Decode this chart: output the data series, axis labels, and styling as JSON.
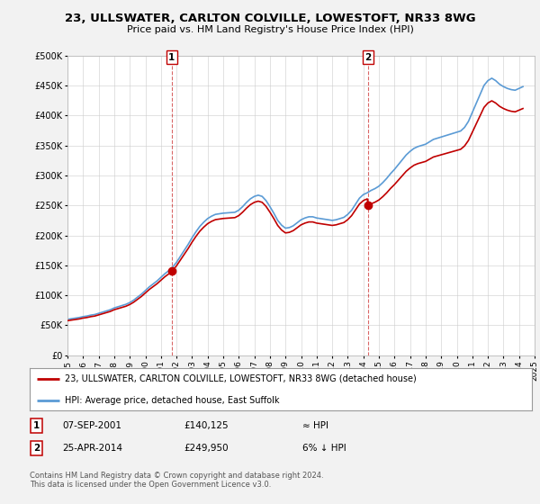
{
  "title": "23, ULLSWATER, CARLTON COLVILLE, LOWESTOFT, NR33 8WG",
  "subtitle": "Price paid vs. HM Land Registry's House Price Index (HPI)",
  "legend_line1": "23, ULLSWATER, CARLTON COLVILLE, LOWESTOFT, NR33 8WG (detached house)",
  "legend_line2": "HPI: Average price, detached house, East Suffolk",
  "annotation1_label": "1",
  "annotation1_date": "07-SEP-2001",
  "annotation1_price": "£140,125",
  "annotation1_hpi": "≈ HPI",
  "annotation2_label": "2",
  "annotation2_date": "25-APR-2014",
  "annotation2_price": "£249,950",
  "annotation2_hpi": "6% ↓ HPI",
  "footer": "Contains HM Land Registry data © Crown copyright and database right 2024.\nThis data is licensed under the Open Government Licence v3.0.",
  "sale1_year": 2001.69,
  "sale1_price": 140125,
  "sale2_year": 2014.32,
  "sale2_price": 249950,
  "hpi_color": "#5b9bd5",
  "price_paid_color": "#c00000",
  "background_color": "#f2f2f2",
  "plot_bg_color": "#ffffff",
  "ylim": [
    0,
    500000
  ],
  "xlim_start": 1995,
  "xlim_end": 2025,
  "hpi_years": [
    1995,
    1995.25,
    1995.5,
    1995.75,
    1996,
    1996.25,
    1996.5,
    1996.75,
    1997,
    1997.25,
    1997.5,
    1997.75,
    1998,
    1998.25,
    1998.5,
    1998.75,
    1999,
    1999.25,
    1999.5,
    1999.75,
    2000,
    2000.25,
    2000.5,
    2000.75,
    2001,
    2001.25,
    2001.5,
    2001.75,
    2002,
    2002.25,
    2002.5,
    2002.75,
    2003,
    2003.25,
    2003.5,
    2003.75,
    2004,
    2004.25,
    2004.5,
    2004.75,
    2005,
    2005.25,
    2005.5,
    2005.75,
    2006,
    2006.25,
    2006.5,
    2006.75,
    2007,
    2007.25,
    2007.5,
    2007.75,
    2008,
    2008.25,
    2008.5,
    2008.75,
    2009,
    2009.25,
    2009.5,
    2009.75,
    2010,
    2010.25,
    2010.5,
    2010.75,
    2011,
    2011.25,
    2011.5,
    2011.75,
    2012,
    2012.25,
    2012.5,
    2012.75,
    2013,
    2013.25,
    2013.5,
    2013.75,
    2014,
    2014.25,
    2014.5,
    2014.75,
    2015,
    2015.25,
    2015.5,
    2015.75,
    2016,
    2016.25,
    2016.5,
    2016.75,
    2017,
    2017.25,
    2017.5,
    2017.75,
    2018,
    2018.25,
    2018.5,
    2018.75,
    2019,
    2019.25,
    2019.5,
    2019.75,
    2020,
    2020.25,
    2020.5,
    2020.75,
    2021,
    2021.25,
    2021.5,
    2021.75,
    2022,
    2022.25,
    2022.5,
    2022.75,
    2023,
    2023.25,
    2023.5,
    2023.75,
    2024,
    2024.25
  ],
  "hpi_values": [
    60000,
    61000,
    62000,
    63000,
    64500,
    65500,
    67000,
    68000,
    70000,
    72000,
    74000,
    76000,
    79000,
    81000,
    83000,
    85000,
    88000,
    92000,
    97000,
    102000,
    108000,
    114000,
    119000,
    124000,
    130000,
    136000,
    141000,
    147000,
    155000,
    165000,
    175000,
    185000,
    196000,
    206000,
    215000,
    222000,
    228000,
    232000,
    235000,
    236000,
    237000,
    237500,
    238000,
    238500,
    242000,
    248000,
    255000,
    261000,
    265000,
    267000,
    265000,
    258000,
    248000,
    237000,
    225000,
    217000,
    212000,
    213000,
    216000,
    221000,
    226000,
    229000,
    231000,
    231000,
    229000,
    228000,
    227000,
    226000,
    225000,
    226000,
    228000,
    230000,
    235000,
    242000,
    252000,
    262000,
    268000,
    271000,
    275000,
    278000,
    282000,
    288000,
    295000,
    303000,
    310000,
    318000,
    326000,
    334000,
    340000,
    345000,
    348000,
    350000,
    352000,
    356000,
    360000,
    362000,
    364000,
    366000,
    368000,
    370000,
    372000,
    374000,
    380000,
    390000,
    405000,
    420000,
    435000,
    450000,
    458000,
    462000,
    458000,
    452000,
    448000,
    445000,
    443000,
    442000,
    445000,
    448000
  ]
}
